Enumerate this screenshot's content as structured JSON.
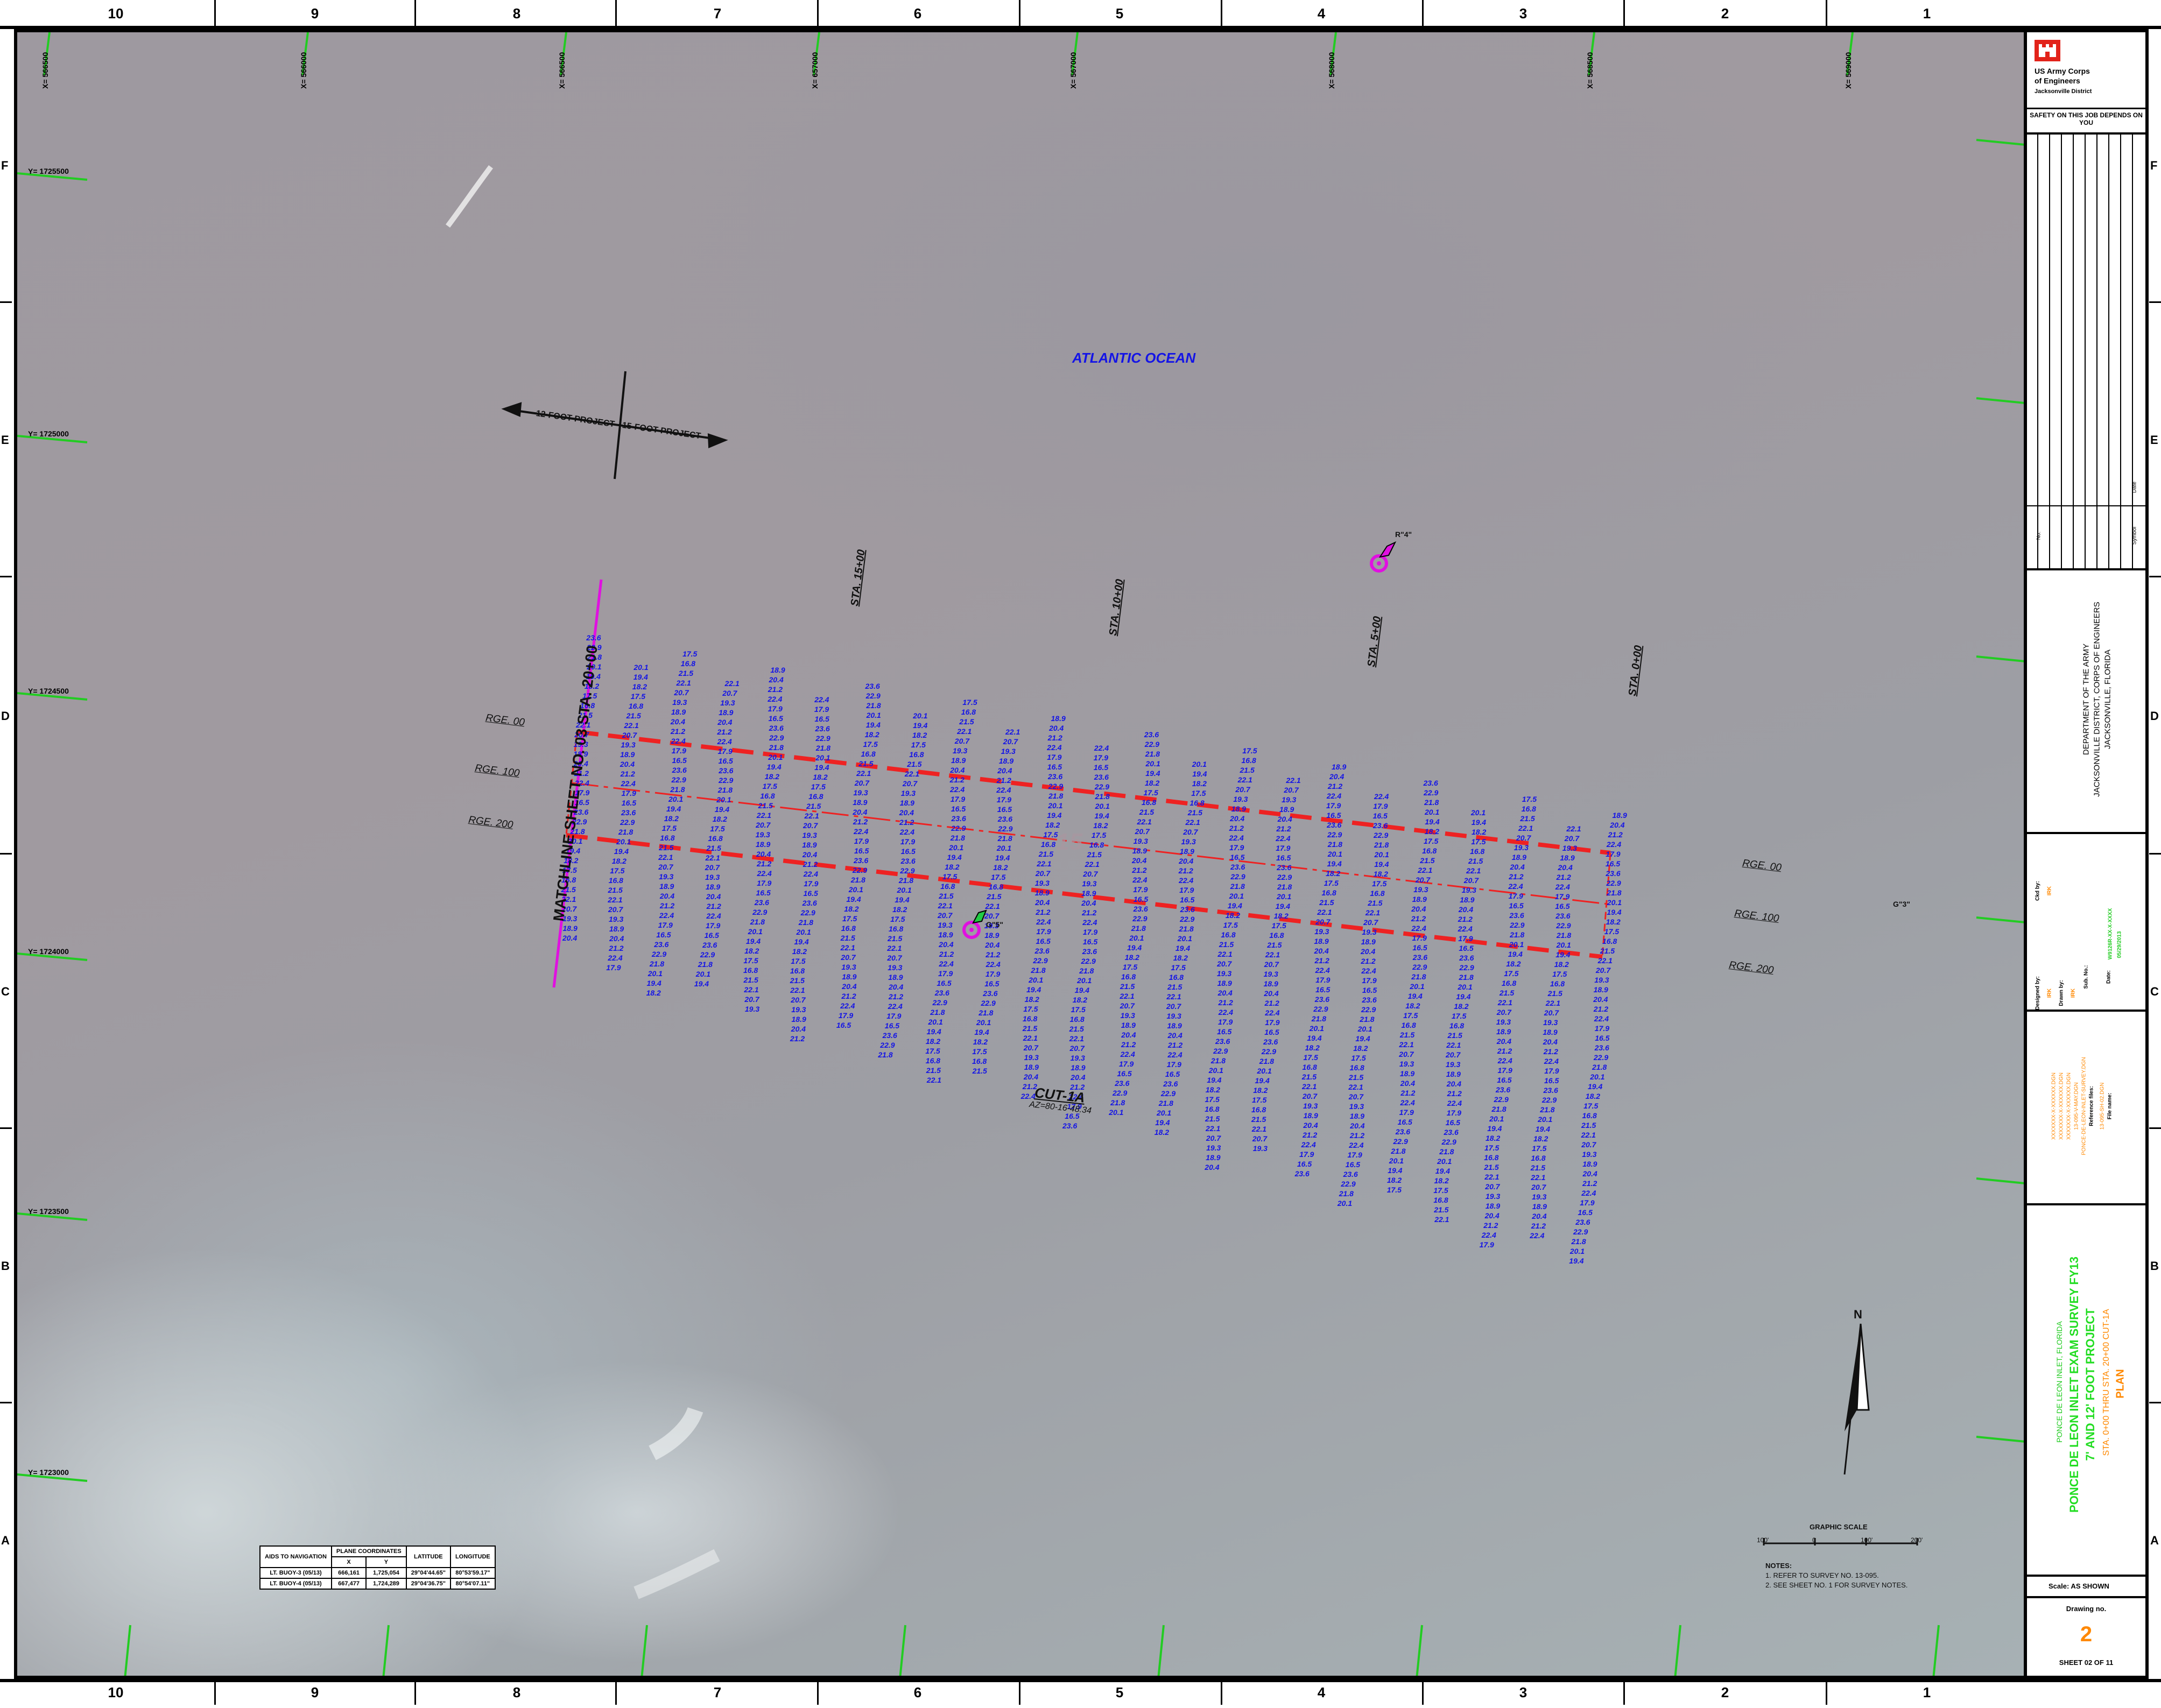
{
  "border": {
    "columns": [
      "10",
      "9",
      "8",
      "7",
      "6",
      "5",
      "4",
      "3",
      "2",
      "1"
    ],
    "rows": [
      "F",
      "E",
      "D",
      "C",
      "B",
      "A"
    ]
  },
  "map": {
    "grid_x_labels": [
      "X= 566500",
      "X= 566000",
      "X= 566500",
      "X= 657000",
      "X= 567000",
      "X= 568000",
      "X= 568500",
      "X= 569000"
    ],
    "grid_y_labels": [
      "Y= 1725500",
      "Y= 1725000",
      "Y= 1724500",
      "Y= 1724000",
      "Y= 1723500",
      "Y= 1723000"
    ],
    "ocean_label": "ATLANTIC OCEAN",
    "project_arrow_left": "12-FOOT PROJECT",
    "project_arrow_right": "15-FOOT PROJECT",
    "matchline": "MATCHLINE SHEET NO. 03 STA. 20+00",
    "stations": [
      "STA. 15+00",
      "STA. 10+00",
      "STA. 5+00",
      "STA. 0+00"
    ],
    "range_left": [
      "RGE. 00",
      "RGE. 100",
      "RGE. 200"
    ],
    "range_right": [
      "RGE. 00",
      "RGE. 100",
      "RGE. 200"
    ],
    "buoy_r4": "R\"4\"",
    "buoy_g5": "G\"5\"",
    "buoy_g3": "G\"3\"",
    "channel_depth": "15",
    "cut_label": "CUT-1A",
    "cut_azimuth": "AZ=80-16-48.34",
    "north_label": "N",
    "graphic_scale_title": "GRAPHIC SCALE",
    "scale_ticks": [
      "100'",
      "0",
      "100'",
      "200'"
    ],
    "notes_title": "NOTES:",
    "notes": [
      "1. REFER TO SURVEY NO. 13-095.",
      "2. SEE SHEET NO. 1 FOR SURVEY NOTES."
    ],
    "sounding_values": [
      "23.6",
      "22.9",
      "21.8",
      "20.1",
      "19.4",
      "18.2",
      "17.5",
      "16.8",
      "21.5",
      "22.1",
      "20.7",
      "19.3",
      "18.9",
      "20.4",
      "21.2",
      "22.4",
      "17.9",
      "16.5"
    ]
  },
  "aids_table": {
    "h_aids": "AIDS TO NAVIGATION",
    "h_plane": "PLANE COORDINATES",
    "h_x": "X",
    "h_y": "Y",
    "h_lat": "LATITUDE",
    "h_lon": "LONGITUDE",
    "rows": [
      {
        "name": "LT. BUOY-3 (05/13)",
        "x": "666,161",
        "y": "1,725,054",
        "lat": "29°04'44.65\"",
        "lon": "80°53'59.17\""
      },
      {
        "name": "LT. BUOY-4 (05/13)",
        "x": "667,477",
        "y": "1,724,289",
        "lat": "29°04'36.75\"",
        "lon": "80°54'07.11\""
      }
    ]
  },
  "title_block": {
    "org_line1": "US Army Corps",
    "org_line2": "of Engineers",
    "org_line3": "Jacksonville District",
    "safety": "SAFETY ON THIS JOB DEPENDS ON YOU",
    "revision_headers": [
      "No.",
      "Symbol",
      "Date"
    ],
    "department": [
      "DEPARTMENT OF THE ARMY",
      "JACKSONVILLE DISTRICT, CORPS OF ENGINEERS",
      "JACKSONVILLE, FLORIDA"
    ],
    "sig_labels": [
      "Designed by:",
      "Drawn by:",
      "Ckd by:",
      "Sub. No.:",
      "Date:"
    ],
    "sig_values": [
      "IRK",
      "IRK",
      "IRK",
      "W9126R-XX-X-XXXX",
      "05/29/2013"
    ],
    "ref_files": [
      "XXXXXXX-X-XXXXXX.DGN",
      "XXXXXXX-X-XXXXXX.DGN",
      "XXXXXXX-X-XXXXXX.DGN",
      "13-095-V-MAY.DGN",
      "PONCE-DE-LEON-INLET-SURVEY.DGN",
      "Reference files:",
      "13-095-SH-02.DGN",
      "File name:"
    ],
    "project_location": "PONCE DE LEON INLET, FLORIDA",
    "project_title_1": "PONCE DE LEON INLET EXAM SURVEY FY13",
    "project_title_2": "7' AND 12' FOOT PROJECT",
    "project_sub": "STA. 0+00 THRU STA. 20+00 CUT-1A",
    "project_plan": "PLAN",
    "scale": "Scale:  AS SHOWN",
    "drawing_no_label": "Drawing no.",
    "drawing_no": "2",
    "sheet": "SHEET  02  OF  11"
  },
  "colors": {
    "soundings": "#1414e6",
    "channel": "#ee2222",
    "matchline": "#e010e0",
    "grid_ticks": "#22cc22",
    "title_green": "#22dd22",
    "title_orange": "#ff8800",
    "usace_red": "#e2231a"
  }
}
